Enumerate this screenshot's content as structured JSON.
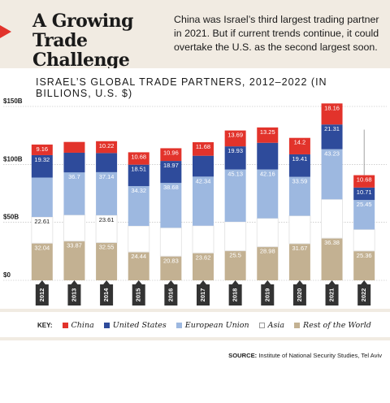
{
  "header": {
    "title": "A Growing Trade Challenge",
    "dek": "China was Israel’s third largest trading partner in 2021. But if current trends continue, it could overtake the U.S. as the second largest soon."
  },
  "legend": {
    "key_label": "KEY:",
    "items": [
      {
        "label": "China",
        "color": "#e2332b"
      },
      {
        "label": "United States",
        "color": "#2e4b9b"
      },
      {
        "label": "European Union",
        "color": "#9db8e0"
      },
      {
        "label": "Asia",
        "color": "#ffffff"
      },
      {
        "label": "Rest of the World",
        "color": "#c3b192"
      }
    ]
  },
  "source": {
    "label": "SOURCE:",
    "text": "Institute of National Security Studies, Tel Aviv"
  },
  "chart_data": {
    "type": "bar",
    "stacked": true,
    "title": "ISRAEL’S GLOBAL TRADE PARTNERS, 2012–2022 (IN BILLIONS, U.S. $)",
    "categories": [
      "2012",
      "2013",
      "2014",
      "2015",
      "2016",
      "2017",
      "2018",
      "2019",
      "2020",
      "2021",
      "2022"
    ],
    "ylim": [
      0,
      150
    ],
    "yticks": [
      {
        "value": 0,
        "label": "$0"
      },
      {
        "value": 50,
        "label": "$50B"
      },
      {
        "value": 100,
        "label": "$100B"
      },
      {
        "value": 150,
        "label": "$150B"
      }
    ],
    "series": [
      {
        "name": "Rest of the World",
        "color": "#c3b192",
        "values": [
          32.04,
          33.87,
          32.55,
          24.44,
          20.83,
          23.62,
          25.5,
          28.98,
          31.67,
          36.38,
          25.36
        ],
        "labels": [
          "32.04",
          "33.87",
          "32.55",
          "24.44",
          "20.83",
          "23.62",
          "25.5",
          "28.98",
          "31.67",
          "36.38",
          "25.36"
        ]
      },
      {
        "name": "Asia",
        "color": "#ffffff",
        "values": [
          22.61,
          22.5,
          23.61,
          22.5,
          24.5,
          23.5,
          25.0,
          24.5,
          24.0,
          33.5,
          18.5
        ],
        "labels": [
          "22.61",
          "",
          "23.61",
          "",
          "",
          "",
          "",
          "",
          "",
          "",
          ""
        ]
      },
      {
        "name": "European Union",
        "color": "#9db8e0",
        "values": [
          34.0,
          36.7,
          37.14,
          34.32,
          38.68,
          42.34,
          45.13,
          42.16,
          33.59,
          43.23,
          25.45
        ],
        "labels": [
          "",
          "36.7",
          "37.14",
          "34.32",
          "38.68",
          "42.34",
          "45.13",
          "42.16",
          "33.59",
          "43.23",
          "25.45"
        ]
      },
      {
        "name": "United States",
        "color": "#2e4b9b",
        "values": [
          19.32,
          17.0,
          16.5,
          18.51,
          18.97,
          18.0,
          19.93,
          23.0,
          19.41,
          21.31,
          10.71
        ],
        "labels": [
          "19.32",
          "",
          "",
          "18.51",
          "18.97",
          "",
          "19.93",
          "",
          "19.41",
          "21.31",
          "10.71"
        ]
      },
      {
        "name": "China",
        "color": "#e2332b",
        "values": [
          9.16,
          9.3,
          10.22,
          10.68,
          10.96,
          11.68,
          13.69,
          13.25,
          14.2,
          18.16,
          10.68
        ],
        "labels": [
          "9.16",
          "",
          "10.22",
          "10.68",
          "10.96",
          "11.68",
          "13.69",
          "13.25",
          "14.2",
          "18.16",
          "10.68"
        ]
      }
    ],
    "projection_marker": {
      "category": "2022",
      "value": 130
    }
  }
}
